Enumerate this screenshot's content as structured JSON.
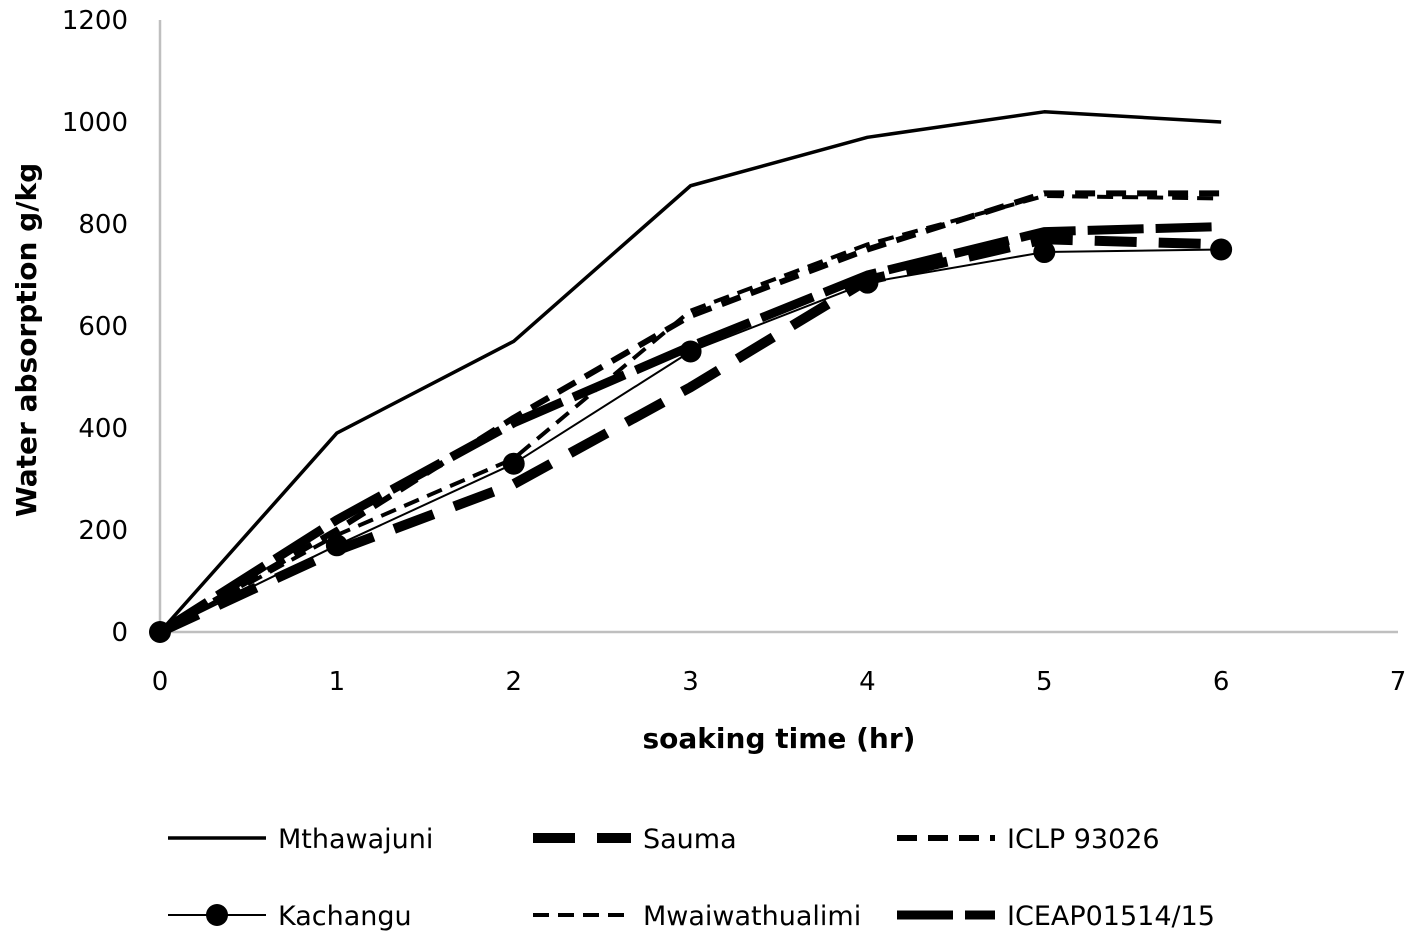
{
  "chart_data": {
    "type": "line",
    "xlabel": "soaking time (hr)",
    "ylabel": "Water absorption g/kg",
    "xlim": [
      0,
      7
    ],
    "ylim": [
      0,
      1200
    ],
    "xticks": [
      "0",
      "1",
      "2",
      "3",
      "4",
      "5",
      "6",
      "7"
    ],
    "yticks": [
      "0",
      "200",
      "400",
      "600",
      "800",
      "1000",
      "1200"
    ],
    "grid": false,
    "legend_position": "bottom",
    "x": [
      0,
      1,
      2,
      3,
      4,
      5,
      6
    ],
    "series": [
      {
        "name": "Mthawajuni",
        "style": "solid-thin",
        "values": [
          0,
          390,
          570,
          875,
          970,
          1020,
          1000
        ]
      },
      {
        "name": "Sauma",
        "style": "dash-heavy",
        "values": [
          0,
          160,
          290,
          480,
          690,
          770,
          760
        ]
      },
      {
        "name": "ICLP 93026",
        "style": "dash-medium",
        "values": [
          0,
          200,
          420,
          620,
          750,
          860,
          860
        ]
      },
      {
        "name": "Kachangu",
        "style": "solid-marker",
        "values": [
          0,
          170,
          330,
          550,
          685,
          745,
          750
        ]
      },
      {
        "name": "Mwaiwathualimi",
        "style": "dash-thin",
        "values": [
          0,
          190,
          340,
          630,
          760,
          855,
          850
        ]
      },
      {
        "name": "ICEAP01514/15",
        "style": "dash-heaviest",
        "values": [
          0,
          220,
          410,
          560,
          700,
          785,
          795
        ]
      }
    ],
    "colors": {
      "line": "#000000",
      "axis": "#bfbfbf"
    }
  }
}
